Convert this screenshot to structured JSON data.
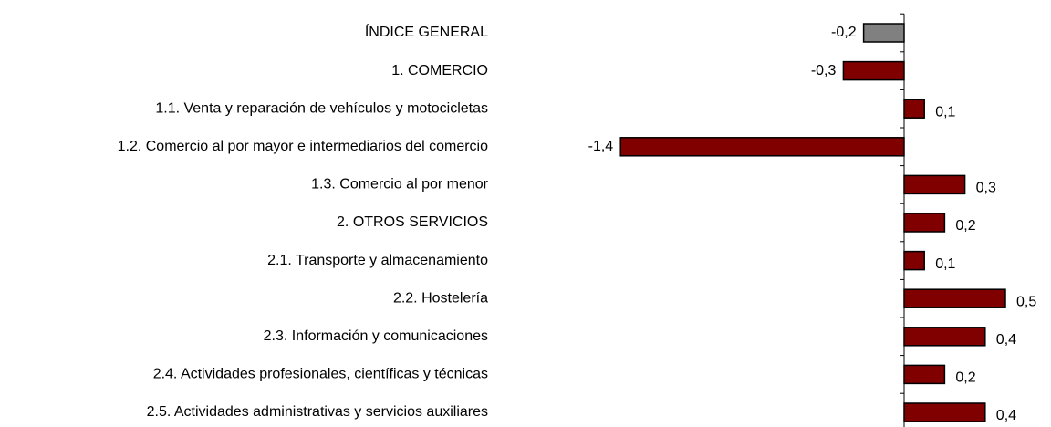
{
  "chart_data": {
    "type": "hbar",
    "categories": [
      "ÍNDICE GENERAL",
      "1. COMERCIO",
      "1.1. Venta y reparación de vehículos y motocicletas",
      "1.2. Comercio al por mayor e intermediarios del comercio",
      "1.3. Comercio al por menor",
      "2. OTROS SERVICIOS",
      "2.1. Transporte y almacenamiento",
      "2.2. Hostelería",
      "2.3. Información y comunicaciones",
      "2.4. Actividades profesionales, científicas y técnicas",
      "2.5. Actividades administrativas y servicios auxiliares"
    ],
    "values": [
      -0.2,
      -0.3,
      0.1,
      -1.4,
      0.3,
      0.2,
      0.1,
      0.5,
      0.4,
      0.2,
      0.4
    ],
    "value_labels": [
      "-0,2",
      "-0,3",
      "0,1",
      "-1,4",
      "0,3",
      "0,2",
      "0,1",
      "0,5",
      "0,4",
      "0,2",
      "0,4"
    ],
    "colors": [
      "#808080",
      "#800000",
      "#800000",
      "#800000",
      "#800000",
      "#800000",
      "#800000",
      "#800000",
      "#800000",
      "#800000",
      "#800000"
    ]
  }
}
